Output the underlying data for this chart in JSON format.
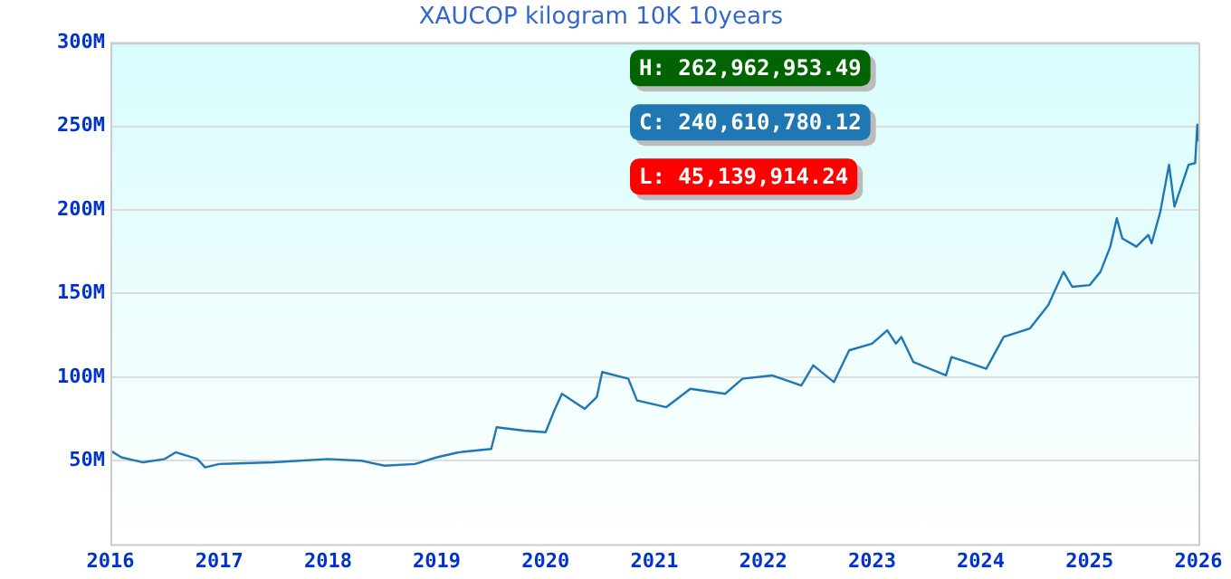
{
  "chart_data": {
    "type": "line",
    "title": "XAUCOP kilogram 10K 10years",
    "x": [
      2016.0,
      2016.1,
      2016.3,
      2016.5,
      2016.6,
      2016.8,
      2016.87,
      2017.0,
      2017.5,
      2018.0,
      2018.3,
      2018.52,
      2018.8,
      2019.0,
      2019.2,
      2019.5,
      2019.55,
      2019.8,
      2020.0,
      2020.08,
      2020.15,
      2020.36,
      2020.47,
      2020.52,
      2020.76,
      2020.84,
      2021.11,
      2021.33,
      2021.65,
      2021.81,
      2022.08,
      2022.35,
      2022.46,
      2022.65,
      2022.79,
      2023.0,
      2023.14,
      2023.22,
      2023.27,
      2023.38,
      2023.68,
      2023.73,
      2023.87,
      2024.05,
      2024.21,
      2024.45,
      2024.62,
      2024.76,
      2024.84,
      2025.0,
      2025.1,
      2025.19,
      2025.25,
      2025.3,
      2025.43,
      2025.54,
      2025.57,
      2025.65,
      2025.73,
      2025.78,
      2025.91,
      2025.97,
      2025.99,
      2026.0
    ],
    "series": [
      {
        "color": "#1f77b4",
        "values": [
          56,
          52,
          49,
          51,
          55,
          51,
          46,
          48,
          49,
          51,
          50,
          47,
          48,
          52,
          55,
          57,
          70,
          68,
          67,
          80,
          90,
          81,
          88,
          103,
          99,
          86,
          82,
          93,
          90,
          99,
          101,
          95,
          107,
          97,
          116,
          120,
          128,
          120,
          124,
          109,
          101,
          112,
          109,
          105,
          124,
          129,
          143,
          163,
          154,
          155,
          163,
          178,
          195,
          183,
          178,
          185,
          180,
          199,
          227,
          202,
          227,
          228,
          251,
          241
        ]
      }
    ],
    "xlim": [
      2016,
      2026
    ],
    "xticks": [
      2016,
      2017,
      2018,
      2019,
      2020,
      2021,
      2022,
      2023,
      2024,
      2025,
      2026
    ],
    "ylim": [
      0,
      300
    ],
    "yticks": [
      {
        "value": 50,
        "label": "50M"
      },
      {
        "value": 100,
        "label": "100M"
      },
      {
        "value": 150,
        "label": "150M"
      },
      {
        "value": 200,
        "label": "200M"
      },
      {
        "value": 250,
        "label": "250M"
      },
      {
        "value": 300,
        "label": "300M"
      }
    ],
    "grid": "y",
    "legend": false,
    "marker": "none",
    "line_style": "solid",
    "annotations": [
      "H: 262,962,953.49",
      "C: 240,610,780.12",
      "L: 45,139,914.24"
    ]
  }
}
